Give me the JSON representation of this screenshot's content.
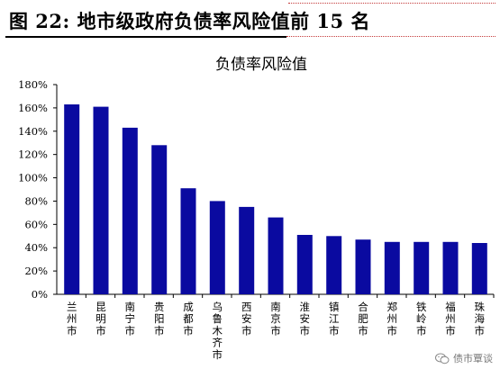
{
  "header": {
    "figure_title": "图 22:  地市级政府负债率风险值前 15 名"
  },
  "watermark": {
    "icon": "wechat-icon",
    "text": "债市覃谈"
  },
  "colors": {
    "bar": "#0a0aa0",
    "accent_dots": "#c43a3a"
  },
  "chart_data": {
    "type": "bar",
    "title": "负债率风险值",
    "xlabel": "",
    "ylabel": "",
    "categories": [
      "兰州市",
      "昆明市",
      "南宁市",
      "贵阳市",
      "成都市",
      "乌鲁木齐市",
      "西安市",
      "南京市",
      "淮安市",
      "镇江市",
      "合肥市",
      "郑州市",
      "铁岭市",
      "福州市",
      "珠海市"
    ],
    "values": [
      163,
      161,
      143,
      128,
      91,
      80,
      75,
      66,
      51,
      50,
      47,
      45,
      45,
      45,
      44
    ],
    "ylim": [
      0,
      180
    ],
    "yticks": [
      0,
      20,
      40,
      60,
      80,
      100,
      120,
      140,
      160,
      180
    ],
    "ytick_labels": [
      "0%",
      "20%",
      "40%",
      "60%",
      "80%",
      "100%",
      "120%",
      "140%",
      "160%",
      "180%"
    ],
    "unit": "%",
    "grid": false,
    "legend": "none"
  }
}
